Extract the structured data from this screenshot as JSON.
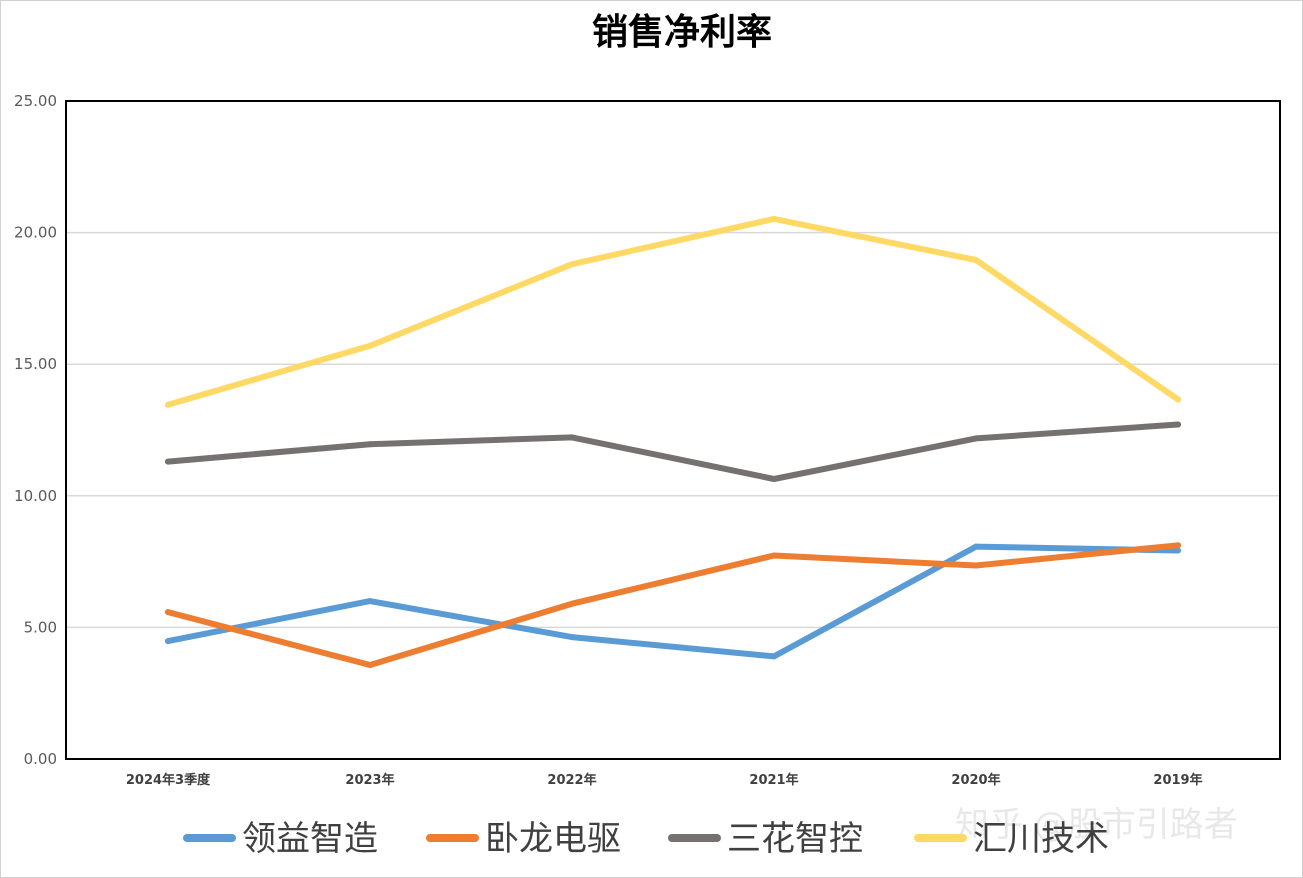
{
  "watermark": "知乎 @股市引路者",
  "colors": {
    "grid": "#d9d9d9",
    "axis": "#000000",
    "frame": "#d0d0d0"
  },
  "chart_data": {
    "type": "line",
    "title": "销售净利率",
    "xlabel": "",
    "ylabel": "",
    "categories": [
      "2024年3季度",
      "2023年",
      "2022年",
      "2021年",
      "2020年",
      "2019年"
    ],
    "ylim": [
      0,
      25
    ],
    "yticks": [
      "0.00",
      "5.00",
      "10.00",
      "15.00",
      "20.00",
      "25.00"
    ],
    "grid": true,
    "legend_position": "bottom",
    "series": [
      {
        "name": "领益智造",
        "color": "#5b9bd5",
        "values": [
          4.48,
          6.0,
          4.63,
          3.9,
          8.07,
          7.92
        ]
      },
      {
        "name": "卧龙电驱",
        "color": "#ed7d31",
        "values": [
          5.58,
          3.57,
          5.9,
          7.73,
          7.35,
          8.12
        ]
      },
      {
        "name": "三花智控",
        "color": "#767171",
        "values": [
          11.3,
          11.96,
          12.22,
          10.64,
          12.18,
          12.71
        ]
      },
      {
        "name": "汇川技术",
        "color": "#ffd966",
        "values": [
          13.46,
          15.7,
          18.8,
          20.52,
          18.96,
          13.66
        ]
      }
    ]
  }
}
